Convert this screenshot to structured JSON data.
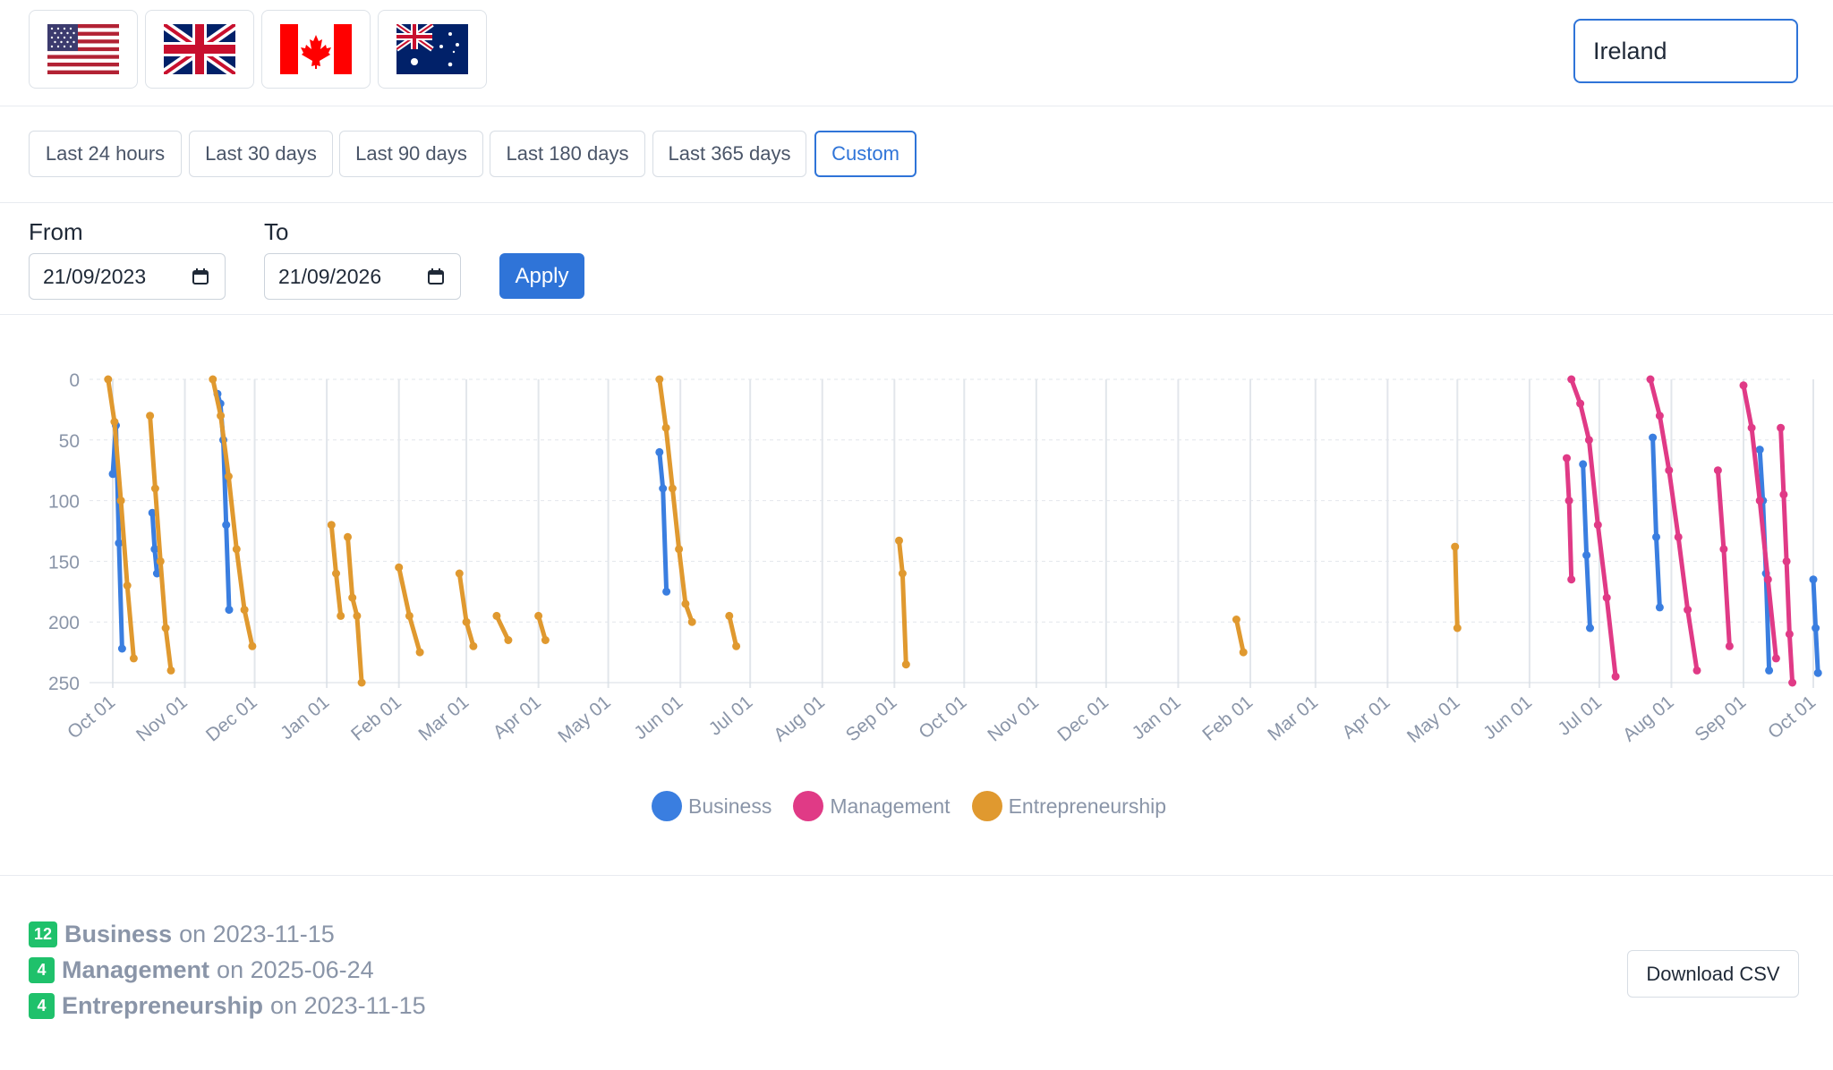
{
  "flags": [
    {
      "icon": "us-flag-icon",
      "name": "United States"
    },
    {
      "icon": "uk-flag-icon",
      "name": "United Kingdom"
    },
    {
      "icon": "canada-flag-icon",
      "name": "Canada"
    },
    {
      "icon": "australia-flag-icon",
      "name": "Australia"
    }
  ],
  "country_input": {
    "value": "Ireland"
  },
  "ranges": [
    "Last 24 hours",
    "Last 30 days",
    "Last 90 days",
    "Last 180 days",
    "Last 365 days",
    "Custom"
  ],
  "active_range": "Custom",
  "date_filter": {
    "from_label": "From",
    "from_value": "21/09/2023",
    "to_label": "To",
    "to_value": "21/09/2026",
    "apply_label": "Apply"
  },
  "colors": {
    "business": "#3a7ee0",
    "management": "#e03a86",
    "entrepreneurship": "#e0992f",
    "accent": "#2f74d8",
    "badge": "#1fc16b"
  },
  "chart_data": {
    "type": "line",
    "x_range": [
      "2023-09-21",
      "2025-09-21"
    ],
    "x_ticks": [
      "Oct 01",
      "Nov 01",
      "Dec 01",
      "Jan 01",
      "Feb 01",
      "Mar 01",
      "Apr 01",
      "May 01",
      "Jun 01",
      "Jul 01",
      "Aug 01",
      "Sep 01",
      "Oct 01",
      "Nov 01",
      "Dec 01",
      "Jan 01",
      "Feb 01",
      "Mar 01",
      "Apr 01",
      "May 01",
      "Jun 01",
      "Jul 01",
      "Aug 01",
      "Sep 01",
      "Oct 01",
      "Nov 01",
      "Dec 01",
      "Jan 01",
      "Feb 01",
      "Mar 01",
      "Apr 01",
      "May 01",
      "Jun 01",
      "Jul 01",
      "Aug 01",
      "Sep 01"
    ],
    "y_ticks": [
      "0",
      "50",
      "100",
      "150",
      "200",
      "250"
    ],
    "ylim": [
      0,
      250
    ],
    "y_reversed": true,
    "grid": true,
    "legend_position": "bottom",
    "series": [
      {
        "name": "Business",
        "color": "#3a7ee0",
        "segments": [
          {
            "start": "2023-10-01",
            "end": "2023-10-05",
            "values": [
              78,
              38,
              135,
              222
            ]
          },
          {
            "start": "2023-10-18",
            "end": "2023-10-20",
            "values": [
              110,
              140,
              160
            ]
          },
          {
            "start": "2023-11-15",
            "end": "2023-11-20",
            "values": [
              12,
              20,
              50,
              120,
              190
            ]
          },
          {
            "start": "2024-05-23",
            "end": "2024-05-26",
            "values": [
              60,
              90,
              175
            ]
          },
          {
            "start": "2025-06-24",
            "end": "2025-06-27",
            "values": [
              70,
              145,
              205
            ]
          },
          {
            "start": "2025-07-24",
            "end": "2025-07-27",
            "values": [
              48,
              130,
              188
            ]
          },
          {
            "start": "2025-09-08",
            "end": "2025-09-12",
            "values": [
              58,
              100,
              160,
              240
            ]
          },
          {
            "start": "2025-10-01",
            "end": "2025-10-03",
            "values": [
              165,
              205,
              242
            ]
          },
          {
            "start": "2026-02-21",
            "end": "2026-02-24",
            "values": [
              82,
              160,
              230
            ]
          },
          {
            "start": "2026-03-15",
            "end": "2026-03-18",
            "values": [
              58,
              110,
              172
            ]
          },
          {
            "start": "2026-05-01",
            "end": "2026-05-03",
            "values": [
              90,
              160,
              210
            ]
          },
          {
            "start": "2026-05-12",
            "end": "2026-05-15",
            "values": [
              102,
              150,
              200
            ]
          }
        ]
      },
      {
        "name": "Management",
        "color": "#e03a86",
        "segments": [
          {
            "start": "2025-06-17",
            "end": "2025-06-19",
            "values": [
              65,
              100,
              165
            ]
          },
          {
            "start": "2025-06-19",
            "end": "2025-07-08",
            "values": [
              0,
              20,
              50,
              120,
              180,
              245
            ]
          },
          {
            "start": "2025-07-23",
            "end": "2025-08-12",
            "values": [
              0,
              30,
              75,
              130,
              190,
              240
            ]
          },
          {
            "start": "2025-08-21",
            "end": "2025-08-26",
            "values": [
              75,
              140,
              220
            ]
          },
          {
            "start": "2025-09-01",
            "end": "2025-09-15",
            "values": [
              5,
              40,
              100,
              165,
              230
            ]
          },
          {
            "start": "2025-09-17",
            "end": "2025-09-22",
            "values": [
              40,
              95,
              150,
              210,
              250
            ]
          },
          {
            "start": "2025-10-15",
            "end": "2025-10-24",
            "values": [
              45,
              100,
              170,
              230
            ]
          },
          {
            "start": "2025-10-26",
            "end": "2025-11-10",
            "values": [
              12,
              60,
              125,
              185,
              235
            ]
          },
          {
            "start": "2025-11-24",
            "end": "2025-12-01",
            "values": [
              35,
              110,
              170,
              225
            ]
          },
          {
            "start": "2026-01-14",
            "end": "2026-01-20",
            "values": [
              60,
              120,
              180,
              235
            ]
          },
          {
            "start": "2026-02-10",
            "end": "2026-02-28",
            "values": [
              0,
              40,
              110,
              170,
              240
            ]
          },
          {
            "start": "2026-03-01",
            "end": "2026-03-22",
            "values": [
              0,
              30,
              85,
              160,
              215,
              245
            ]
          },
          {
            "start": "2026-03-25",
            "end": "2026-04-10",
            "values": [
              40,
              95,
              160,
              215,
              245
            ]
          },
          {
            "start": "2026-04-16",
            "end": "2026-05-01",
            "values": [
              0,
              50,
              120,
              180,
              240
            ]
          },
          {
            "start": "2026-05-07",
            "end": "2026-05-25",
            "values": [
              0,
              40,
              100,
              165,
              215,
              240
            ]
          },
          {
            "start": "2026-05-27",
            "end": "2026-06-10",
            "values": [
              70,
              120,
              180,
              235
            ]
          },
          {
            "start": "2026-06-23",
            "end": "2026-07-02",
            "values": [
              38,
              110,
              180,
              245
            ]
          },
          {
            "start": "2026-07-17",
            "end": "2026-07-25",
            "values": [
              60,
              130,
              210
            ]
          },
          {
            "start": "2026-08-07",
            "end": "2026-08-16",
            "values": [
              72,
              140,
              210,
              240
            ]
          },
          {
            "start": "2026-08-28",
            "end": "2026-09-05",
            "values": [
              55,
              130,
              200,
              245
            ]
          },
          {
            "start": "2026-09-10",
            "end": "2026-09-20",
            "values": [
              45,
              110,
              180,
              240
            ]
          }
        ]
      },
      {
        "name": "Entrepreneurship",
        "color": "#e0992f",
        "segments": [
          {
            "start": "2023-09-29",
            "end": "2023-10-10",
            "values": [
              0,
              35,
              100,
              170,
              230
            ]
          },
          {
            "start": "2023-10-17",
            "end": "2023-10-26",
            "values": [
              30,
              90,
              150,
              205,
              240
            ]
          },
          {
            "start": "2023-11-13",
            "end": "2023-11-30",
            "values": [
              0,
              30,
              80,
              140,
              190,
              220
            ]
          },
          {
            "start": "2024-01-03",
            "end": "2024-01-07",
            "values": [
              120,
              160,
              195
            ]
          },
          {
            "start": "2024-01-10",
            "end": "2024-01-16",
            "values": [
              130,
              180,
              195,
              250
            ]
          },
          {
            "start": "2024-02-01",
            "end": "2024-02-10",
            "values": [
              155,
              195,
              225
            ]
          },
          {
            "start": "2024-02-27",
            "end": "2024-03-04",
            "values": [
              160,
              200,
              220
            ]
          },
          {
            "start": "2024-03-14",
            "end": "2024-03-19",
            "values": [
              195,
              215
            ]
          },
          {
            "start": "2024-04-01",
            "end": "2024-04-04",
            "values": [
              195,
              215
            ]
          },
          {
            "start": "2024-05-23",
            "end": "2024-06-06",
            "values": [
              0,
              40,
              90,
              140,
              185,
              200
            ]
          },
          {
            "start": "2024-06-22",
            "end": "2024-06-25",
            "values": [
              195,
              220
            ]
          },
          {
            "start": "2024-09-03",
            "end": "2024-09-06",
            "values": [
              133,
              160,
              235
            ]
          },
          {
            "start": "2025-01-26",
            "end": "2025-01-29",
            "values": [
              198,
              225
            ]
          },
          {
            "start": "2025-04-30",
            "end": "2025-05-01",
            "values": [
              138,
              205
            ]
          }
        ]
      }
    ]
  },
  "summary": [
    {
      "count": "12",
      "name": "Business",
      "text": "on 2023-11-15"
    },
    {
      "count": "4",
      "name": "Management",
      "text": "on 2025-06-24"
    },
    {
      "count": "4",
      "name": "Entrepreneurship",
      "text": "on 2023-11-15"
    }
  ],
  "download_label": "Download CSV"
}
